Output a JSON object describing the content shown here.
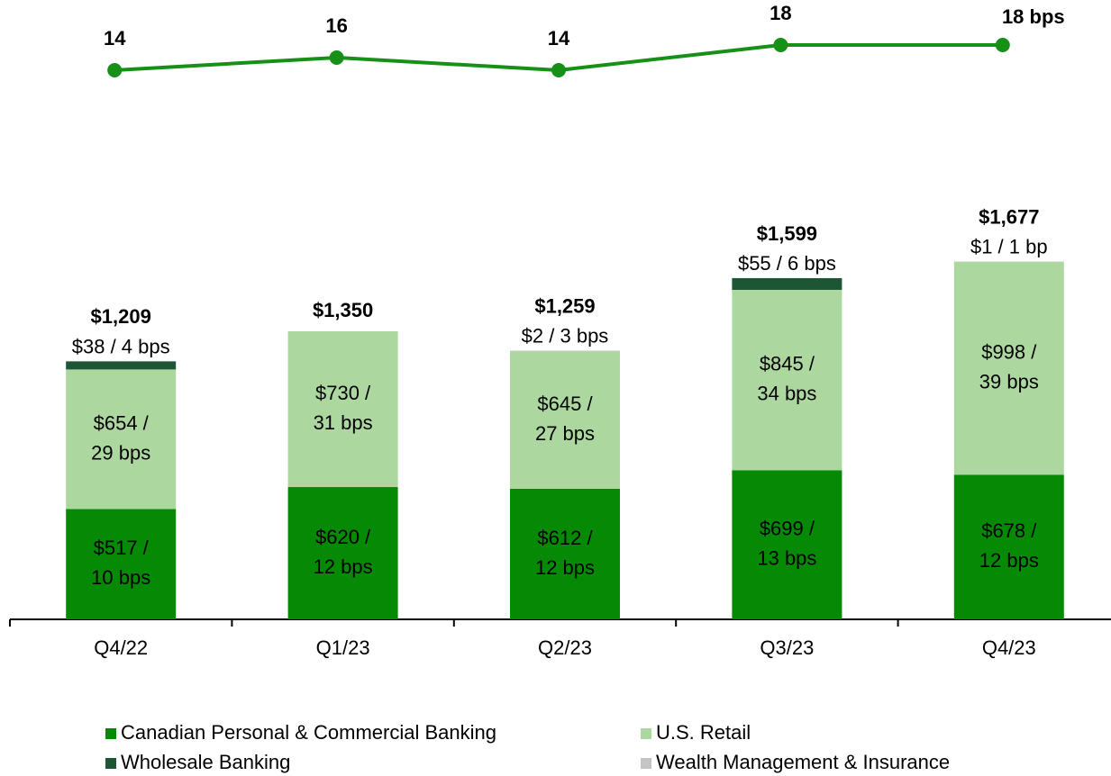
{
  "chart_data": {
    "type": "bar",
    "stacked": true,
    "categories": [
      "Q4/22",
      "Q1/23",
      "Q2/23",
      "Q3/23",
      "Q4/23"
    ],
    "ylim": [
      0,
      1700
    ],
    "y2lim": [
      10,
      20
    ],
    "series": [
      {
        "name": "Canadian Personal & Commercial Banking",
        "color": "#068a06",
        "label_position": "inside",
        "label_color": "#ffffff",
        "values": [
          517,
          620,
          612,
          699,
          678
        ],
        "value_labels": [
          [
            "$517 /",
            "10 bps"
          ],
          [
            "$620 /",
            "12 bps"
          ],
          [
            "$612 /",
            "12 bps"
          ],
          [
            "$699 /",
            "13 bps"
          ],
          [
            "$678 /",
            "12 bps"
          ]
        ]
      },
      {
        "name": "U.S. Retail",
        "color": "#acd8a0",
        "label_position": "inside",
        "label_color": "#111111",
        "values": [
          654,
          730,
          645,
          845,
          998
        ],
        "value_labels": [
          [
            "$654 /",
            "29 bps"
          ],
          [
            "$730 /",
            "31 bps"
          ],
          [
            "$645 /",
            "27 bps"
          ],
          [
            "$845 /",
            "34 bps"
          ],
          [
            "$998 /",
            "39 bps"
          ]
        ]
      },
      {
        "name": "Wholesale Banking",
        "color": "#1c5634",
        "label_position": "above",
        "label_color": "#000000",
        "values": [
          38,
          null,
          null,
          55,
          null
        ],
        "value_labels": [
          [
            "$38 / 4 bps"
          ],
          null,
          null,
          [
            "$55 / 6 bps"
          ],
          null
        ]
      },
      {
        "name": "Wealth Management & Insurance",
        "color": "#c4c4c4",
        "label_position": "above",
        "label_color": "#000000",
        "values": [
          null,
          null,
          2,
          null,
          1
        ],
        "value_labels": [
          null,
          null,
          [
            "$2 / 3 bps"
          ],
          null,
          [
            "$1 / 1 bp"
          ]
        ]
      },
      {
        "type": "line",
        "axis": "y2",
        "color": "#179017",
        "values": [
          14,
          16,
          14,
          18,
          18
        ],
        "value_labels": [
          "14",
          "16",
          "14",
          "18",
          "18 bps"
        ]
      }
    ],
    "totals": [
      1209,
      1350,
      1259,
      1599,
      1677
    ],
    "total_labels": [
      "$1,209",
      "$1,350",
      "$1,259",
      "$1,599",
      "$1,677"
    ]
  }
}
